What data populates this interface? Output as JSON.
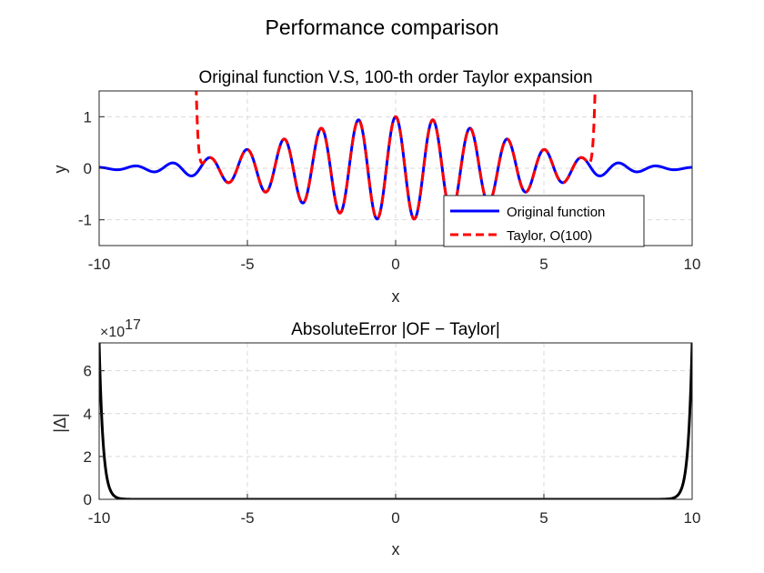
{
  "chart_data": [
    {
      "type": "line",
      "suptitle": "Performance comparison",
      "title": "Original function V.S, 100-th order Taylor expansion",
      "xlabel": "x",
      "ylabel": "y",
      "xlim": [
        -10,
        10
      ],
      "ylim": [
        -1.5,
        1.5
      ],
      "xticks": [
        "-10",
        "-5",
        "0",
        "5",
        "10"
      ],
      "yticks": [
        "-1",
        "0",
        "1"
      ],
      "grid": true,
      "legend_location": "bottom-right",
      "series": [
        {
          "name": "Original function",
          "color": "#0000ff",
          "style": "solid",
          "formula": "exp(-x^2/25)*cos(5x)",
          "x": [
            -10,
            -9,
            -8,
            -7,
            -6,
            -5,
            -4,
            -3,
            -2,
            -1,
            0,
            1,
            2,
            3,
            4,
            5,
            6,
            7,
            8,
            9,
            10
          ],
          "y": [
            0.018,
            0.022,
            -0.027,
            -0.042,
            0.036,
            0.365,
            0.214,
            -0.636,
            -0.715,
            0.272,
            1.0,
            0.272,
            -0.715,
            -0.636,
            0.214,
            0.365,
            0.036,
            -0.042,
            -0.027,
            0.022,
            0.018
          ]
        },
        {
          "name": "Taylor, O(100)",
          "color": "#ff0000",
          "style": "dashed",
          "x": [
            -6.6,
            -6,
            -5,
            -4,
            -3,
            -2,
            -1,
            0,
            1,
            2,
            3,
            4,
            5,
            6,
            6.6
          ],
          "y": [
            1.5,
            0.036,
            0.365,
            0.214,
            -0.636,
            -0.715,
            0.272,
            1.0,
            0.272,
            -0.715,
            -0.636,
            0.214,
            0.365,
            0.036,
            1.5
          ]
        }
      ]
    },
    {
      "type": "line",
      "title": "AbsoluteError |OF − Taylor|",
      "xlabel": "x",
      "ylabel": "|Δ|",
      "xlim": [
        -10,
        10
      ],
      "ylim": [
        0,
        7.3
      ],
      "y_exponent": "17",
      "xticks": [
        "-10",
        "-5",
        "0",
        "5",
        "10"
      ],
      "yticks": [
        "0",
        "2",
        "4",
        "6"
      ],
      "grid": true,
      "series": [
        {
          "name": "",
          "color": "#000000",
          "style": "solid",
          "x": [
            -10,
            -9.8,
            -9.6,
            -9.4,
            -9,
            0,
            9,
            9.4,
            9.6,
            9.8,
            10
          ],
          "y": [
            7.3,
            2.0,
            0.4,
            0.05,
            0,
            0,
            0,
            0.05,
            0.4,
            2.0,
            7.3
          ]
        }
      ]
    }
  ]
}
